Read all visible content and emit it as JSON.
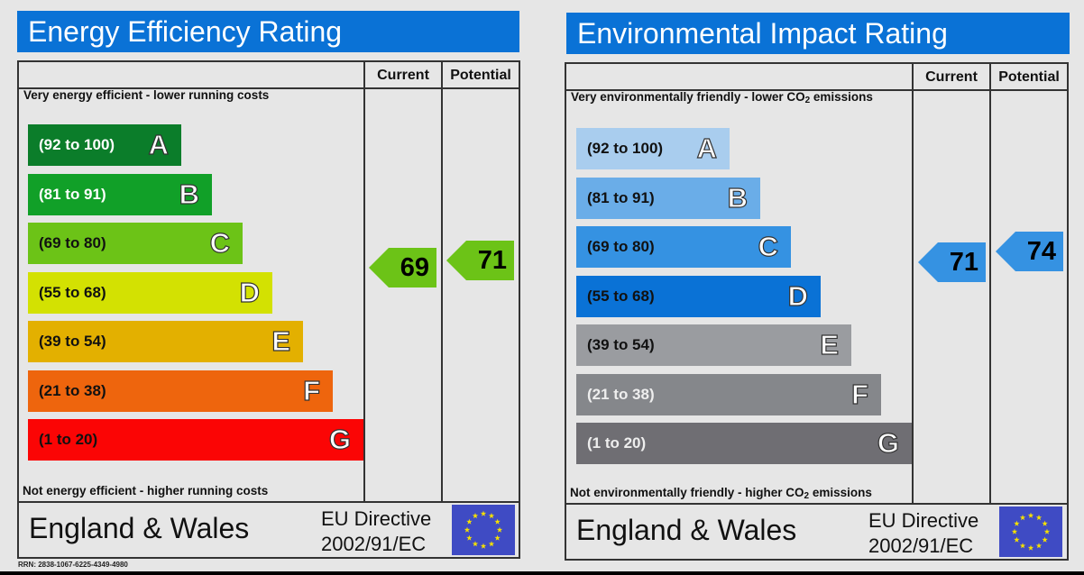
{
  "energy": {
    "title": "Energy Efficiency Rating",
    "col_current": "Current",
    "col_potential": "Potential",
    "top_caption": "Very energy efficient - lower running costs",
    "bottom_caption": "Not energy efficient - higher running costs",
    "bands": [
      {
        "range": "(92 to 100)",
        "letter": "A",
        "color": "#0b7d2a",
        "text_color": "#ffffff"
      },
      {
        "range": "(81 to 91)",
        "letter": "B",
        "color": "#11a028",
        "text_color": "#ffffff"
      },
      {
        "range": "(69 to 80)",
        "letter": "C",
        "color": "#6cc317",
        "text_color": "#111111"
      },
      {
        "range": "(55 to 68)",
        "letter": "D",
        "color": "#d3e102",
        "text_color": "#111111"
      },
      {
        "range": "(39 to 54)",
        "letter": "E",
        "color": "#e3b000",
        "text_color": "#111111"
      },
      {
        "range": "(21 to 38)",
        "letter": "F",
        "color": "#ee650d",
        "text_color": "#111111"
      },
      {
        "range": "(1 to 20)",
        "letter": "G",
        "color": "#fb0505",
        "text_color": "#111111"
      }
    ],
    "current": {
      "value": "69",
      "color": "#6cc317"
    },
    "potential": {
      "value": "71",
      "color": "#6cc317"
    },
    "footer_region": "England & Wales",
    "footer_directive_line1": "EU Directive",
    "footer_directive_line2": "2002/91/EC"
  },
  "environmental": {
    "title": "Environmental Impact Rating",
    "col_current": "Current",
    "col_potential": "Potential",
    "top_caption_pre": "Very environmentally friendly - lower CO",
    "top_caption_sub": "2",
    "top_caption_post": " emissions",
    "bottom_caption_pre": "Not environmentally friendly - higher CO",
    "bottom_caption_sub": "2",
    "bottom_caption_post": " emissions",
    "bands": [
      {
        "range": "(92 to 100)",
        "letter": "A",
        "color": "#a9cdee",
        "text_color": "#111111"
      },
      {
        "range": "(81 to 91)",
        "letter": "B",
        "color": "#6aade8",
        "text_color": "#111111"
      },
      {
        "range": "(69 to 80)",
        "letter": "C",
        "color": "#3592e2",
        "text_color": "#111111"
      },
      {
        "range": "(55 to 68)",
        "letter": "D",
        "color": "#0a72d6",
        "text_color": "#111111"
      },
      {
        "range": "(39 to 54)",
        "letter": "E",
        "color": "#9a9ca0",
        "text_color": "#111111"
      },
      {
        "range": "(21 to 38)",
        "letter": "F",
        "color": "#85878b",
        "text_color": "#eeeeee"
      },
      {
        "range": "(1 to 20)",
        "letter": "G",
        "color": "#6f6e73",
        "text_color": "#eeeeee"
      }
    ],
    "current": {
      "value": "71",
      "color": "#3592e2"
    },
    "potential": {
      "value": "74",
      "color": "#3592e2"
    },
    "footer_region": "England & Wales",
    "footer_directive_line1": "EU Directive",
    "footer_directive_line2": "2002/91/EC"
  },
  "rrn": "RRN: 2838-1067-6225-4349-4980",
  "chart_data": [
    {
      "type": "bar",
      "title": "Energy Efficiency Rating",
      "categories": [
        "A (92 to 100)",
        "B (81 to 91)",
        "C (69 to 80)",
        "D (55 to 68)",
        "E (39 to 54)",
        "F (21 to 38)",
        "G (1 to 20)"
      ],
      "series": [
        {
          "name": "Current",
          "values": [
            69
          ]
        },
        {
          "name": "Potential",
          "values": [
            71
          ]
        }
      ],
      "current": 69,
      "current_band": "C",
      "potential": 71,
      "potential_band": "C",
      "top_label": "Very energy efficient - lower running costs",
      "bottom_label": "Not energy efficient - higher running costs"
    },
    {
      "type": "bar",
      "title": "Environmental Impact Rating",
      "categories": [
        "A (92 to 100)",
        "B (81 to 91)",
        "C (69 to 80)",
        "D (55 to 68)",
        "E (39 to 54)",
        "F (21 to 38)",
        "G (1 to 20)"
      ],
      "series": [
        {
          "name": "Current",
          "values": [
            71
          ]
        },
        {
          "name": "Potential",
          "values": [
            74
          ]
        }
      ],
      "current": 71,
      "current_band": "C",
      "potential": 74,
      "potential_band": "C",
      "top_label": "Very environmentally friendly - lower CO2 emissions",
      "bottom_label": "Not environmentally friendly - higher CO2 emissions"
    }
  ]
}
